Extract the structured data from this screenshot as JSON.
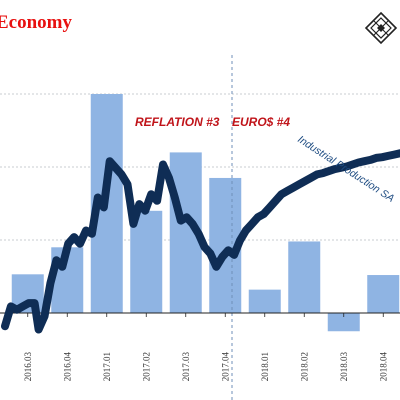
{
  "header": {
    "title": "Economy",
    "title_color": "#e8100f",
    "logo_icon": "diamond-lattice-logo-icon"
  },
  "colors": {
    "bars": "#8fb4e3",
    "line": "#0f2d55",
    "grid": "#b8bcc4",
    "annotation_red": "#c0141a",
    "annotation_blue": "#1e4c82",
    "divider": "#6f8fb8"
  },
  "chart_data": {
    "type": "bar",
    "title": "Economy",
    "grid": "horizontal dashed",
    "legend": "none",
    "axis_ranges": {
      "bars": [
        -1,
        3
      ],
      "line": [
        -1,
        3.5
      ]
    },
    "x_tick_labels": [
      "2016.03",
      "2016.04",
      "2017.01",
      "2017.02",
      "2017.03",
      "2017.04",
      "2018.01",
      "2018.02",
      "2018.03",
      "2018.04",
      "2018.01"
    ],
    "categories": [
      "2016.03",
      "2016.04",
      "2017.01",
      "2017.02",
      "2017.03",
      "2017.04",
      "2018.01",
      "2018.02",
      "2018.03",
      "2018.04",
      "2018.01"
    ],
    "bar_series": {
      "values": [
        0.53,
        0.9,
        3.0,
        1.4,
        2.2,
        1.85,
        0.32,
        0.98,
        -0.25,
        0.52,
        0.98
      ]
    },
    "line_series": {
      "name": "Industrial Production SA",
      "x": [
        0,
        0.15,
        0.3,
        0.45,
        0.6,
        0.75,
        0.85,
        1.0,
        1.15,
        1.3,
        1.45,
        1.6,
        1.75,
        1.9,
        2.05,
        2.2,
        2.35,
        2.5,
        2.65,
        2.8,
        2.95,
        3.1,
        3.25,
        3.4,
        3.55,
        3.7,
        3.85,
        4.0,
        4.15,
        4.3,
        4.45,
        4.6,
        4.75,
        4.9,
        5.05,
        5.2,
        5.35,
        5.5,
        5.65,
        5.8,
        5.95,
        6.1,
        6.25,
        6.4,
        6.55,
        6.7,
        6.85,
        7.0,
        7.15,
        7.3,
        7.45,
        7.6,
        7.75,
        7.9,
        8.05,
        8.2,
        8.35,
        8.5,
        8.65,
        8.8,
        8.95,
        9.1,
        9.25,
        9.4,
        9.55,
        9.7,
        9.85,
        10.0
      ],
      "y": [
        -0.2,
        0.1,
        0.05,
        0.1,
        0.15,
        0.15,
        -0.25,
        -0.05,
        0.45,
        0.8,
        0.7,
        1.05,
        1.15,
        1.05,
        1.25,
        1.2,
        1.75,
        1.6,
        2.3,
        2.2,
        2.1,
        1.95,
        1.35,
        1.65,
        1.55,
        1.8,
        1.7,
        2.25,
        2.05,
        1.75,
        1.4,
        1.45,
        1.35,
        1.2,
        1.0,
        0.9,
        0.7,
        0.85,
        0.95,
        0.88,
        1.1,
        1.25,
        1.35,
        1.45,
        1.5,
        1.6,
        1.7,
        1.8,
        1.85,
        1.9,
        1.95,
        2.0,
        2.05,
        2.1,
        2.12,
        2.15,
        2.18,
        2.2,
        2.22,
        2.25,
        2.28,
        2.3,
        2.32,
        2.35,
        2.36,
        2.38,
        2.4,
        2.42
      ]
    },
    "annotations": [
      {
        "text": "REFLATION #3",
        "color": "red"
      },
      {
        "text": "EURO$ #4",
        "color": "red"
      },
      {
        "text": "Industrial Production SA",
        "color": "blue"
      }
    ]
  }
}
